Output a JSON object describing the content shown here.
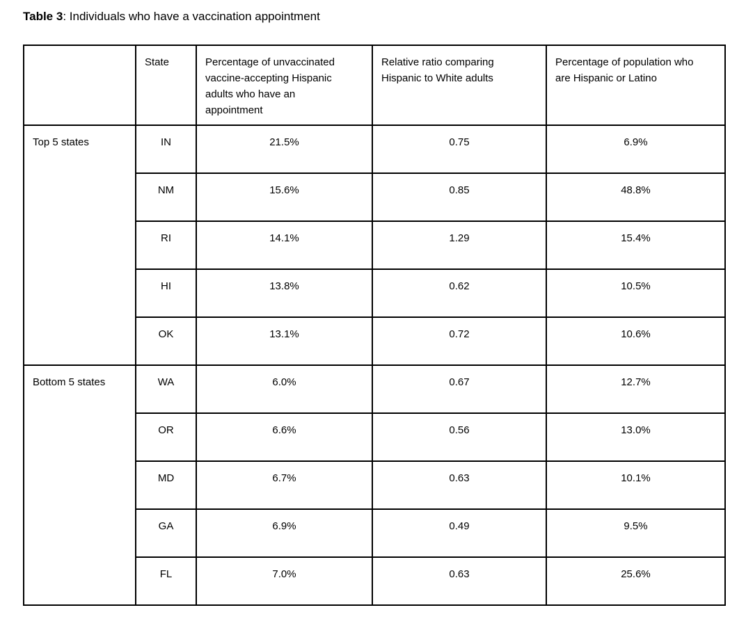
{
  "title": {
    "label_bold": "Table 3",
    "label_rest": ": Individuals who have a vaccination appointment"
  },
  "table": {
    "column_headers": {
      "group": "",
      "state": "State",
      "pct_appointment": "Percentage of unvaccinated vaccine-accepting Hispanic adults who have an appointment",
      "relative_ratio": "Relative ratio comparing Hispanic to White adults",
      "pct_population": "Percentage of population who are Hispanic or Latino"
    },
    "groups": [
      {
        "label": "Top 5 states",
        "rows": [
          {
            "state": "IN",
            "pct_appointment": "21.5%",
            "relative_ratio": "0.75",
            "pct_population": "6.9%"
          },
          {
            "state": "NM",
            "pct_appointment": "15.6%",
            "relative_ratio": "0.85",
            "pct_population": "48.8%"
          },
          {
            "state": "RI",
            "pct_appointment": "14.1%",
            "relative_ratio": "1.29",
            "pct_population": "15.4%"
          },
          {
            "state": "HI",
            "pct_appointment": "13.8%",
            "relative_ratio": "0.62",
            "pct_population": "10.5%"
          },
          {
            "state": "OK",
            "pct_appointment": "13.1%",
            "relative_ratio": "0.72",
            "pct_population": "10.6%"
          }
        ]
      },
      {
        "label": "Bottom 5 states",
        "rows": [
          {
            "state": "WA",
            "pct_appointment": "6.0%",
            "relative_ratio": "0.67",
            "pct_population": "12.7%"
          },
          {
            "state": "OR",
            "pct_appointment": "6.6%",
            "relative_ratio": "0.56",
            "pct_population": "13.0%"
          },
          {
            "state": "MD",
            "pct_appointment": "6.7%",
            "relative_ratio": "0.63",
            "pct_population": "10.1%"
          },
          {
            "state": "GA",
            "pct_appointment": "6.9%",
            "relative_ratio": "0.49",
            "pct_population": "9.5%"
          },
          {
            "state": "FL",
            "pct_appointment": "7.0%",
            "relative_ratio": "0.63",
            "pct_population": "25.6%"
          }
        ]
      }
    ]
  },
  "colors": {
    "text": "#000000",
    "border": "#000000",
    "background": "#ffffff"
  },
  "chart_data": {
    "type": "table",
    "title": "Table 3: Individuals who have a vaccination appointment",
    "columns": [
      "",
      "State",
      "Percentage of unvaccinated vaccine-accepting Hispanic adults who have an appointment",
      "Relative ratio comparing Hispanic to White adults",
      "Percentage of population who are Hispanic or Latino"
    ],
    "rows": [
      [
        "Top 5 states",
        "IN",
        "21.5%",
        "0.75",
        "6.9%"
      ],
      [
        "Top 5 states",
        "NM",
        "15.6%",
        "0.85",
        "48.8%"
      ],
      [
        "Top 5 states",
        "RI",
        "14.1%",
        "1.29",
        "15.4%"
      ],
      [
        "Top 5 states",
        "HI",
        "13.8%",
        "0.62",
        "10.5%"
      ],
      [
        "Top 5 states",
        "OK",
        "13.1%",
        "0.72",
        "10.6%"
      ],
      [
        "Bottom 5 states",
        "WA",
        "6.0%",
        "0.67",
        "12.7%"
      ],
      [
        "Bottom 5 states",
        "OR",
        "6.6%",
        "0.56",
        "13.0%"
      ],
      [
        "Bottom 5 states",
        "MD",
        "6.7%",
        "0.63",
        "10.1%"
      ],
      [
        "Bottom 5 states",
        "GA",
        "6.9%",
        "0.49",
        "9.5%"
      ],
      [
        "Bottom 5 states",
        "FL",
        "7.0%",
        "0.63",
        "25.6%"
      ]
    ]
  }
}
